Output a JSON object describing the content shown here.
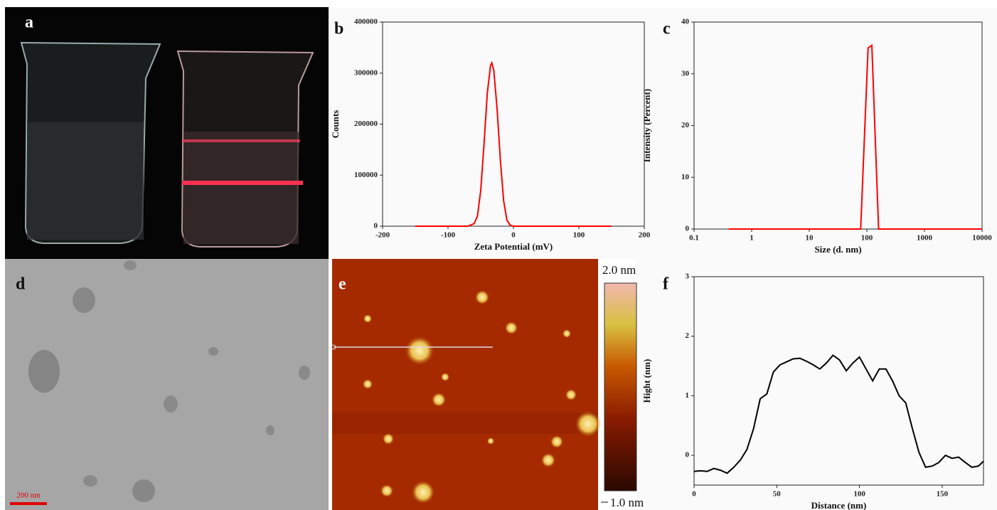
{
  "panels": [
    {
      "label": "a"
    },
    {
      "label": "d",
      "scale_bar": "200 nm"
    },
    {
      "label": "e",
      "colorbar_max": "2.0 nm",
      "colorbar_min": "1.0 nm"
    }
  ],
  "chart_data": [
    {
      "type": "line",
      "label": "b",
      "x_label": "Zeta Potential (mV)",
      "y_label": "Counts",
      "x": [
        -150,
        -100,
        -70,
        -60,
        -55,
        -50,
        -45,
        -40,
        -35,
        -33,
        -30,
        -25,
        -20,
        -15,
        -10,
        -5,
        0,
        50,
        100,
        150
      ],
      "values": [
        0,
        0,
        0,
        5000,
        20000,
        70000,
        160000,
        260000,
        315000,
        320000,
        305000,
        230000,
        130000,
        50000,
        12000,
        2000,
        0,
        0,
        0,
        0
      ],
      "color": "#ff0000",
      "xlim": [
        -200,
        200
      ],
      "xticks": [
        -200,
        -100,
        0,
        100,
        200
      ],
      "ylim": [
        0,
        400000
      ],
      "yticks": [
        0,
        100000,
        200000,
        300000,
        400000
      ]
    },
    {
      "type": "line",
      "label": "c",
      "x_label": "Size (d. nm)",
      "y_label": "Intensity (Percent)",
      "x": [
        0.4,
        1,
        10,
        78,
        105,
        122,
        160,
        1000,
        10000
      ],
      "values": [
        0,
        0,
        0,
        0,
        35,
        35.5,
        0,
        0,
        0
      ],
      "color": "#ff0000",
      "xscale": "log",
      "xlim": [
        0.1,
        10000
      ],
      "xticks": [
        0.1,
        1,
        10,
        100,
        1000,
        10000
      ],
      "ylim": [
        0,
        40
      ],
      "yticks": [
        0,
        10,
        20,
        30,
        40
      ]
    },
    {
      "type": "line",
      "label": "f",
      "x_label": "Distance (nm)",
      "y_label": "Hight (nm)",
      "x": [
        0,
        4,
        8,
        12,
        16,
        20,
        24,
        28,
        32,
        36,
        40,
        44,
        48,
        52,
        56,
        60,
        64,
        68,
        72,
        76,
        80,
        84,
        88,
        92,
        96,
        100,
        104,
        108,
        112,
        116,
        120,
        124,
        128,
        132,
        136,
        140,
        144,
        148,
        152,
        156,
        160,
        164,
        168,
        172,
        175
      ],
      "values": [
        -0.27,
        -0.26,
        -0.27,
        -0.22,
        -0.25,
        -0.3,
        -0.2,
        -0.08,
        0.1,
        0.45,
        0.95,
        1.03,
        1.4,
        1.52,
        1.57,
        1.62,
        1.63,
        1.58,
        1.52,
        1.45,
        1.55,
        1.68,
        1.6,
        1.42,
        1.55,
        1.65,
        1.45,
        1.25,
        1.45,
        1.45,
        1.25,
        1.0,
        0.88,
        0.45,
        0.05,
        -0.2,
        -0.18,
        -0.12,
        0.0,
        -0.05,
        -0.03,
        -0.12,
        -0.2,
        -0.18,
        -0.1
      ],
      "color": "#000000",
      "xlim": [
        0,
        175
      ],
      "xticks": [
        0,
        50,
        100,
        150
      ],
      "ylim": [
        -0.5,
        3
      ],
      "yticks": [
        0,
        1,
        2,
        3
      ]
    }
  ]
}
